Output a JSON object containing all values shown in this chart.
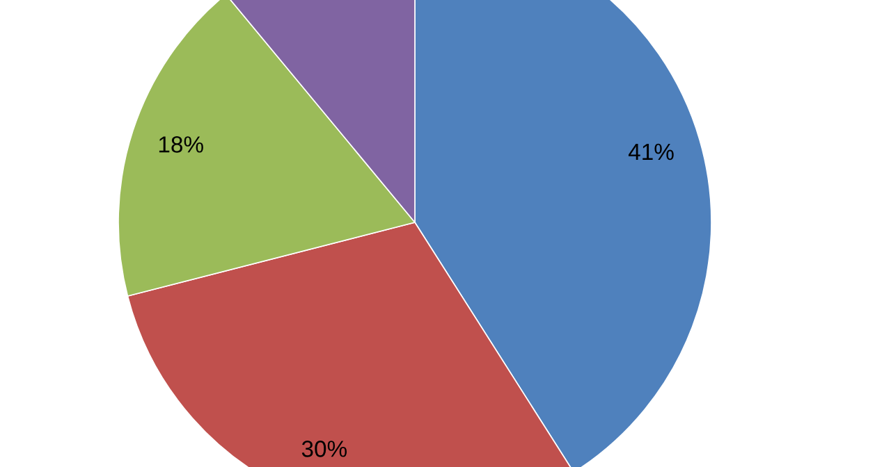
{
  "chart_data": {
    "type": "pie",
    "categories": [
      null,
      null,
      null,
      null
    ],
    "values": [
      41,
      30,
      18,
      11
    ],
    "value_labels": [
      "41%",
      "30%",
      "18%",
      null
    ],
    "colors": [
      "#4f81bd",
      "#c0504d",
      "#9bbb59",
      "#8064a2"
    ]
  }
}
